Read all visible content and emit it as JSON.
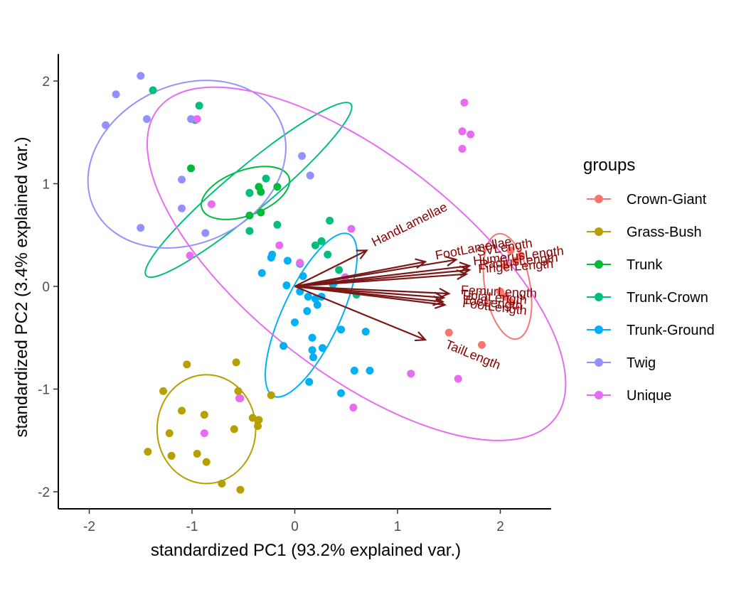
{
  "chart_data": {
    "type": "scatter",
    "xlabel": "standardized PC1 (93.2% explained var.)",
    "ylabel": "standardized PC2 (3.4% explained var.)",
    "xlim": [
      -2.3,
      2.5
    ],
    "ylim": [
      -2.1,
      2.25
    ],
    "x_ticks": [
      -2,
      -1,
      0,
      1,
      2
    ],
    "y_ticks": [
      -2,
      -1,
      0,
      1,
      2
    ],
    "grid": false,
    "legend": {
      "title": "groups",
      "placement": "right",
      "entries": [
        "Crown-Giant",
        "Grass-Bush",
        "Trunk",
        "Trunk-Crown",
        "Trunk-Ground",
        "Twig",
        "Unique"
      ]
    },
    "series": [
      {
        "name": "Crown-Giant",
        "color": "#F8766D",
        "points": [
          [
            2.1,
            0.35
          ],
          [
            2.15,
            0.25
          ],
          [
            2.2,
            0.3
          ],
          [
            2.05,
            0.2
          ],
          [
            2.05,
            -0.1
          ],
          [
            2.1,
            -0.15
          ],
          [
            2.0,
            -0.05
          ],
          [
            1.5,
            -0.45
          ],
          [
            1.82,
            -0.57
          ]
        ],
        "ellipse": {
          "cx": 2.07,
          "cy": 0.0,
          "rx": 0.22,
          "ry": 0.52,
          "angle": -10
        }
      },
      {
        "name": "Grass-Bush",
        "color": "#B79F00",
        "points": [
          [
            -1.05,
            -0.76
          ],
          [
            -0.57,
            -0.74
          ],
          [
            -1.28,
            -1.02
          ],
          [
            -0.55,
            -1.02
          ],
          [
            -0.23,
            -1.06
          ],
          [
            -1.1,
            -1.21
          ],
          [
            -0.88,
            -1.25
          ],
          [
            -0.41,
            -1.28
          ],
          [
            -0.35,
            -1.3
          ],
          [
            -0.36,
            -1.36
          ],
          [
            -1.22,
            -1.43
          ],
          [
            -0.59,
            -1.39
          ],
          [
            -1.43,
            -1.61
          ],
          [
            -1.2,
            -1.65
          ],
          [
            -0.95,
            -1.63
          ],
          [
            -0.86,
            -1.71
          ],
          [
            -0.71,
            -1.92
          ],
          [
            -0.53,
            -1.98
          ]
        ],
        "ellipse": {
          "cx": -0.86,
          "cy": -1.39,
          "rx": 0.48,
          "ry": 0.53,
          "angle": 0
        }
      },
      {
        "name": "Trunk",
        "color": "#00BA38",
        "points": [
          [
            -1.01,
            1.15
          ],
          [
            -0.35,
            0.97
          ],
          [
            -0.17,
            0.97
          ],
          [
            -0.44,
            0.91
          ],
          [
            -0.33,
            0.92
          ],
          [
            -0.44,
            0.69
          ],
          [
            -0.33,
            0.72
          ]
        ],
        "ellipse": {
          "cx": -0.48,
          "cy": 0.91,
          "rx": 0.45,
          "ry": 0.22,
          "angle": -20
        }
      },
      {
        "name": "Trunk-Crown",
        "color": "#00BF7D",
        "points": [
          [
            -1.38,
            1.91
          ],
          [
            -0.93,
            1.76
          ],
          [
            -0.97,
            1.62
          ],
          [
            -0.28,
            1.05
          ],
          [
            -0.44,
            0.91
          ],
          [
            -0.44,
            0.54
          ],
          [
            -0.17,
            0.6
          ],
          [
            0.34,
            0.64
          ],
          [
            0.26,
            0.44
          ],
          [
            0.2,
            0.4
          ],
          [
            0.32,
            0.31
          ],
          [
            0.43,
            0.16
          ],
          [
            0.37,
            0.02
          ],
          [
            0.6,
            -0.08
          ]
        ],
        "ellipse": {
          "cx": -0.45,
          "cy": 0.94,
          "rx": 1.3,
          "ry": 0.21,
          "angle": -40
        }
      },
      {
        "name": "Trunk-Ground",
        "color": "#00B0F6",
        "points": [
          [
            -0.22,
            0.31
          ],
          [
            -0.23,
            0.28
          ],
          [
            -0.32,
            0.13
          ],
          [
            -0.07,
            0.25
          ],
          [
            -0.08,
            0.01
          ],
          [
            0.05,
            0.22
          ],
          [
            0.08,
            0.1
          ],
          [
            0.05,
            -0.05
          ],
          [
            0.13,
            -0.1
          ],
          [
            0.2,
            -0.12
          ],
          [
            0.26,
            -0.1
          ],
          [
            0.38,
            0.03
          ],
          [
            0.22,
            -0.18
          ],
          [
            0.12,
            -0.24
          ],
          [
            0.0,
            -0.35
          ],
          [
            0.17,
            -0.5
          ],
          [
            -0.11,
            -0.58
          ],
          [
            0.17,
            -0.62
          ],
          [
            0.27,
            -0.6
          ],
          [
            0.45,
            -0.42
          ],
          [
            0.69,
            -0.44
          ],
          [
            0.18,
            -0.69
          ],
          [
            0.58,
            -0.82
          ],
          [
            0.73,
            -0.82
          ],
          [
            0.14,
            -0.93
          ],
          [
            0.45,
            -1.04
          ]
        ],
        "ellipse": {
          "cx": 0.16,
          "cy": -0.28,
          "rx": 0.87,
          "ry": 0.28,
          "angle": -65
        }
      },
      {
        "name": "Twig",
        "color": "#9590FF",
        "points": [
          [
            -1.5,
            2.05
          ],
          [
            -1.74,
            1.87
          ],
          [
            -1.84,
            1.57
          ],
          [
            -1.44,
            1.63
          ],
          [
            -1.01,
            1.63
          ],
          [
            -1.1,
            1.04
          ],
          [
            -1.1,
            0.76
          ],
          [
            -1.5,
            0.57
          ],
          [
            -0.87,
            0.52
          ],
          [
            0.07,
            1.27
          ],
          [
            0.15,
            1.08
          ]
        ],
        "ellipse": {
          "cx": -1.05,
          "cy": 1.19,
          "rx": 1.0,
          "ry": 0.77,
          "angle": -25
        }
      },
      {
        "name": "Unique",
        "color": "#E76BF3",
        "points": [
          [
            1.65,
            1.79
          ],
          [
            1.63,
            1.51
          ],
          [
            1.71,
            1.48
          ],
          [
            1.63,
            1.34
          ],
          [
            -0.81,
            0.8
          ],
          [
            -0.95,
            1.63
          ],
          [
            0.55,
            0.56
          ],
          [
            -0.15,
            0.4
          ],
          [
            0.05,
            0.23
          ],
          [
            0.49,
            0.09
          ],
          [
            -1.02,
            0.3
          ],
          [
            1.13,
            -0.85
          ],
          [
            1.59,
            -0.9
          ],
          [
            0.57,
            -1.18
          ],
          [
            -0.53,
            -1.09
          ],
          [
            -0.54,
            -1.09
          ],
          [
            -0.88,
            -1.43
          ]
        ],
        "ellipse": {
          "cx": 0.6,
          "cy": 0.22,
          "rx": 2.45,
          "ry": 1.05,
          "angle": 38
        }
      }
    ],
    "loadings": [
      {
        "label": "HandLamellae",
        "x": 0.7,
        "y": 0.35
      },
      {
        "label": "FootLamellae",
        "x": 1.27,
        "y": 0.24
      },
      {
        "label": "SVLength",
        "x": 1.57,
        "y": 0.26
      },
      {
        "label": "HumerusLength",
        "x": 1.7,
        "y": 0.2
      },
      {
        "label": "RadiusLength",
        "x": 1.7,
        "y": 0.16
      },
      {
        "label": "FingerLength",
        "x": 1.67,
        "y": 0.12
      },
      {
        "label": "FemurLength",
        "x": 1.5,
        "y": -0.07
      },
      {
        "label": "TibiaLength",
        "x": 1.45,
        "y": -0.11
      },
      {
        "label": "ToeLength",
        "x": 1.44,
        "y": -0.15
      },
      {
        "label": "FootLength",
        "x": 1.46,
        "y": -0.18
      },
      {
        "label": "TailLength",
        "x": 1.27,
        "y": -0.52
      }
    ],
    "loading_color": "#7a1717"
  }
}
